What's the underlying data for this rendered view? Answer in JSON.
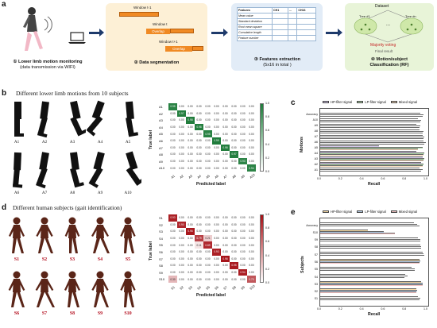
{
  "panel_a": {
    "letter": "a",
    "stage1": {
      "title": "① Lower limb motion monitoring",
      "sub": "(data transmission via WIFI)"
    },
    "stage2": {
      "title": "② Data segmentation",
      "windows": [
        "Window t-1",
        "Window t",
        "Window t+1"
      ],
      "overlap": "Overlap"
    },
    "stage3": {
      "title": "③ Features extraction",
      "sub": "(5x16 in total )",
      "header": [
        "Features",
        "CH1",
        "...",
        "CH16"
      ],
      "rows": [
        "Mean value",
        "Standard deviation",
        "Root mean square",
        "Cumulative length",
        "Feature number"
      ]
    },
    "stage4": {
      "title": "④ Motion/subject",
      "sub": "Classification (RF)",
      "dataset": "Dataset",
      "tree1": "Tree #1",
      "dots": "...",
      "treeN": "Tree #n",
      "vote": "Majority voting",
      "result": "Final result"
    }
  },
  "panel_b": {
    "letter": "b",
    "heading": "Different lower limb motions from 10 subjects",
    "motions": [
      "A1",
      "A2",
      "A3",
      "A4",
      "A5",
      "A6",
      "A7",
      "A8",
      "A9",
      "A10"
    ]
  },
  "cm_b": {
    "labels": [
      "A1",
      "A2",
      "A3",
      "A4",
      "A5",
      "A6",
      "A7",
      "A8",
      "A9",
      "A10"
    ],
    "true_label": "True label",
    "pred_label": "Predicted label",
    "color": "#1e7b3a",
    "cbar_ticks": [
      "1.0",
      "0.8",
      "0.6",
      "0.4",
      "0.2",
      "0.0"
    ],
    "matrix": [
      [
        0.95,
        0.0,
        0.0,
        0.0,
        0.0,
        0.0,
        0.0,
        0.0,
        0.0,
        0.0
      ],
      [
        0.0,
        0.97,
        0.0,
        0.0,
        0.0,
        0.0,
        0.0,
        0.0,
        0.0,
        0.0
      ],
      [
        0.0,
        0.0,
        0.98,
        0.0,
        0.0,
        0.0,
        0.0,
        0.0,
        0.0,
        0.0
      ],
      [
        0.0,
        0.0,
        0.0,
        0.98,
        0.0,
        0.0,
        0.0,
        0.0,
        0.0,
        0.0
      ],
      [
        0.0,
        0.0,
        0.0,
        0.0,
        0.95,
        0.0,
        0.0,
        0.0,
        0.0,
        0.0
      ],
      [
        0.0,
        0.0,
        0.0,
        0.0,
        0.0,
        0.99,
        0.0,
        0.0,
        0.0,
        0.0
      ],
      [
        0.0,
        0.0,
        0.0,
        0.0,
        0.0,
        0.0,
        0.98,
        0.0,
        0.0,
        0.0
      ],
      [
        0.0,
        0.0,
        0.0,
        0.0,
        0.0,
        0.0,
        0.0,
        0.97,
        0.0,
        0.0
      ],
      [
        0.0,
        0.0,
        0.0,
        0.0,
        0.0,
        0.0,
        0.0,
        0.0,
        0.93,
        0.0
      ],
      [
        0.0,
        0.0,
        0.0,
        0.0,
        0.0,
        0.0,
        0.0,
        0.0,
        0.0,
        0.94
      ]
    ]
  },
  "panel_c": {
    "letter": "c",
    "legend": [
      "HP-filter signal",
      "LP-filter signal",
      "Mixed signal"
    ],
    "colors": [
      "#d7c9ee",
      "#b7e0b0",
      "#f6d8b8"
    ],
    "ylabel": "Motions",
    "xlabel": "Recall",
    "categories": [
      "Accuracy",
      "A10",
      "A9",
      "A8",
      "A7",
      "A6",
      "A5",
      "A4",
      "A3",
      "A2",
      "A1"
    ],
    "xticks": [
      "0.0",
      "0.2",
      "0.4",
      "0.6",
      "0.8",
      "1.0"
    ],
    "series": [
      {
        "name": "HP-filter signal",
        "values": [
          0.94,
          0.92,
          0.9,
          0.93,
          0.96,
          0.97,
          0.55,
          0.9,
          0.96,
          0.95,
          0.93
        ]
      },
      {
        "name": "LP-filter signal",
        "values": [
          0.97,
          0.95,
          0.94,
          0.97,
          0.98,
          0.99,
          0.96,
          0.98,
          0.98,
          0.97,
          0.96
        ]
      },
      {
        "name": "Mixed signal",
        "values": [
          0.96,
          0.94,
          0.93,
          0.96,
          0.97,
          0.98,
          0.92,
          0.97,
          0.97,
          0.96,
          0.95
        ]
      }
    ]
  },
  "panel_d": {
    "letter": "d",
    "heading": "Different human subjects (gait identification)",
    "subjects": [
      "S1",
      "S2",
      "S3",
      "S4",
      "S5",
      "S6",
      "S7",
      "S8",
      "S9",
      "S10"
    ]
  },
  "cm_d": {
    "labels": [
      "S1",
      "S2",
      "S3",
      "S4",
      "S5",
      "S6",
      "S7",
      "S8",
      "S9",
      "S10"
    ],
    "true_label": "True label",
    "pred_label": "Predicted label",
    "color": "#a50f15",
    "cbar_ticks": [
      "1.0",
      "0.8",
      "0.6",
      "0.4",
      "0.2",
      "0.0"
    ],
    "matrix": [
      [
        0.93,
        0.0,
        0.0,
        0.0,
        0.0,
        0.0,
        0.0,
        0.0,
        0.0,
        0.0
      ],
      [
        0.0,
        0.9,
        0.0,
        0.0,
        0.0,
        0.0,
        0.0,
        0.0,
        0.0,
        0.0
      ],
      [
        0.0,
        0.0,
        0.96,
        0.0,
        0.0,
        0.0,
        0.0,
        0.0,
        0.0,
        0.0
      ],
      [
        0.0,
        0.0,
        0.0,
        0.79,
        0.21,
        0.0,
        0.0,
        0.0,
        0.0,
        0.0
      ],
      [
        0.0,
        0.0,
        0.0,
        0.11,
        0.89,
        0.0,
        0.0,
        0.0,
        0.0,
        0.0
      ],
      [
        0.0,
        0.0,
        0.0,
        0.0,
        0.0,
        0.93,
        0.0,
        0.0,
        0.0,
        0.0
      ],
      [
        0.0,
        0.0,
        0.0,
        0.0,
        0.0,
        0.0,
        0.98,
        0.0,
        0.0,
        0.0
      ],
      [
        0.0,
        0.0,
        0.0,
        0.0,
        0.0,
        0.0,
        0.0,
        0.95,
        0.0,
        0.0
      ],
      [
        0.0,
        0.0,
        0.0,
        0.0,
        0.0,
        0.0,
        0.0,
        0.0,
        0.94,
        0.0
      ],
      [
        0.3,
        0.0,
        0.0,
        0.0,
        0.0,
        0.0,
        0.0,
        0.0,
        0.0,
        0.7
      ]
    ]
  },
  "panel_e": {
    "letter": "e",
    "legend": [
      "HP-filter signal",
      "LP-filter signal",
      "Mixed signal"
    ],
    "colors": [
      "#f9dca4",
      "#bcd3ef",
      "#f4c2c2"
    ],
    "ylabel": "Subjects",
    "xlabel": "Recall",
    "categories": [
      "Accuracy",
      "S10",
      "S9",
      "S8",
      "S7",
      "S6",
      "S5",
      "S4",
      "S3",
      "S2",
      "S1"
    ],
    "xticks": [
      "0.0",
      "0.2",
      "0.4",
      "0.6",
      "0.8",
      "1.0"
    ],
    "series": [
      {
        "name": "HP-filter signal",
        "values": [
          0.88,
          0.45,
          0.92,
          0.94,
          0.96,
          0.93,
          0.86,
          0.8,
          0.95,
          0.9,
          0.92
        ]
      },
      {
        "name": "LP-filter signal",
        "values": [
          0.91,
          0.6,
          0.94,
          0.95,
          0.97,
          0.94,
          0.89,
          0.82,
          0.96,
          0.91,
          0.94
        ]
      },
      {
        "name": "Mixed signal",
        "values": [
          0.93,
          0.7,
          0.94,
          0.95,
          0.98,
          0.93,
          0.89,
          0.79,
          0.96,
          0.9,
          0.93
        ]
      }
    ]
  }
}
